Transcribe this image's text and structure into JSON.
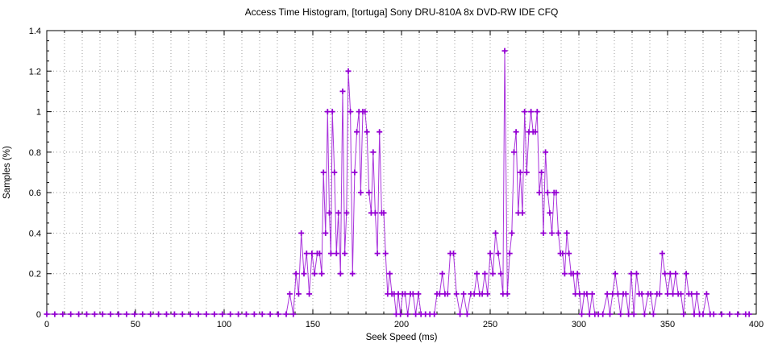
{
  "chart_data": {
    "type": "line",
    "title": "Access Time Histogram, [tortuga] Sony DRU-810A 8x DVD-RW IDE CFQ",
    "xlabel": "Seek Speed (ms)",
    "ylabel": "Samples (%)",
    "xlim": [
      0,
      400
    ],
    "ylim": [
      0,
      1.4
    ],
    "x_major_ticks": [
      0,
      50,
      100,
      150,
      200,
      250,
      300,
      350,
      400
    ],
    "x_tick_labels": [
      "0",
      "50",
      "100",
      "150",
      "200",
      "250",
      "300",
      "350",
      "400"
    ],
    "x_minor_step": 10,
    "y_major_ticks": [
      0,
      0.2,
      0.4,
      0.6,
      0.8,
      1,
      1.2,
      1.4
    ],
    "y_tick_labels": [
      "0",
      "0.2",
      "0.4",
      "0.6",
      "0.8",
      "1",
      "1.2",
      "1.4"
    ],
    "y_minor_step": 0.05,
    "grid": "dotted; vertical lines every 10 ms, horizontal lines every 0.2",
    "legend": "none",
    "marker": "plus",
    "series_color": "#9400d3",
    "grid_color": "#9e9e9e",
    "border_color": "#000000",
    "points": [
      [
        0,
        0
      ],
      [
        4.5,
        0
      ],
      [
        9,
        0
      ],
      [
        13.5,
        0
      ],
      [
        18,
        0
      ],
      [
        22.5,
        0
      ],
      [
        27,
        0
      ],
      [
        31.5,
        0
      ],
      [
        36,
        0
      ],
      [
        40.5,
        0
      ],
      [
        45,
        0
      ],
      [
        49.5,
        0
      ],
      [
        54,
        0
      ],
      [
        58.5,
        0
      ],
      [
        63,
        0
      ],
      [
        67.5,
        0
      ],
      [
        72,
        0
      ],
      [
        76.5,
        0
      ],
      [
        81,
        0
      ],
      [
        85.5,
        0
      ],
      [
        90,
        0
      ],
      [
        94.5,
        0
      ],
      [
        99,
        0
      ],
      [
        103.5,
        0
      ],
      [
        108,
        0
      ],
      [
        112.5,
        0
      ],
      [
        117,
        0
      ],
      [
        121.5,
        0
      ],
      [
        126,
        0
      ],
      [
        130.5,
        0
      ],
      [
        135,
        0
      ],
      [
        137,
        0.1
      ],
      [
        139,
        0
      ],
      [
        140.5,
        0.2
      ],
      [
        142,
        0.1
      ],
      [
        143.5,
        0.4
      ],
      [
        145,
        0.2
      ],
      [
        146.5,
        0.3
      ],
      [
        148,
        0.1
      ],
      [
        149.5,
        0.3
      ],
      [
        151,
        0.2
      ],
      [
        152.5,
        0.3
      ],
      [
        153.8,
        0.3
      ],
      [
        155,
        0.2
      ],
      [
        156,
        0.7
      ],
      [
        157.2,
        0.4
      ],
      [
        158.3,
        1
      ],
      [
        159.3,
        0.5
      ],
      [
        160.2,
        0.3
      ],
      [
        161,
        1
      ],
      [
        162.2,
        0.7
      ],
      [
        163.3,
        0.3
      ],
      [
        164.4,
        0.5
      ],
      [
        165.6,
        0.2
      ],
      [
        166.8,
        1.1
      ],
      [
        168,
        0.3
      ],
      [
        169,
        0.5
      ],
      [
        170,
        1.2
      ],
      [
        171.2,
        1
      ],
      [
        172.4,
        0.2
      ],
      [
        173.6,
        0.7
      ],
      [
        174.8,
        0.9
      ],
      [
        176,
        1
      ],
      [
        177,
        0.6
      ],
      [
        178.2,
        1
      ],
      [
        179.4,
        1
      ],
      [
        180.5,
        0.9
      ],
      [
        181.7,
        0.6
      ],
      [
        182.9,
        0.5
      ],
      [
        184,
        0.8
      ],
      [
        185.2,
        0.5
      ],
      [
        186.4,
        0.3
      ],
      [
        187.6,
        0.9
      ],
      [
        188.8,
        0.5
      ],
      [
        190,
        0.5
      ],
      [
        191,
        0.3
      ],
      [
        192.2,
        0.1
      ],
      [
        193.4,
        0.2
      ],
      [
        194.6,
        0.1
      ],
      [
        195.8,
        0.1
      ],
      [
        197,
        0
      ],
      [
        198.2,
        0.1
      ],
      [
        199.4,
        0
      ],
      [
        200.6,
        0.1
      ],
      [
        202,
        0.1
      ],
      [
        203.5,
        0
      ],
      [
        205,
        0.1
      ],
      [
        206.5,
        0.1
      ],
      [
        208,
        0
      ],
      [
        209.5,
        0.1
      ],
      [
        211,
        0
      ],
      [
        213.5,
        0
      ],
      [
        216,
        0
      ],
      [
        218.5,
        0
      ],
      [
        220,
        0.1
      ],
      [
        221.5,
        0.1
      ],
      [
        223,
        0.2
      ],
      [
        224.5,
        0.1
      ],
      [
        226,
        0.1
      ],
      [
        227.5,
        0.3
      ],
      [
        229.3,
        0.3
      ],
      [
        231,
        0.1
      ],
      [
        233,
        0
      ],
      [
        235,
        0.1
      ],
      [
        237,
        0
      ],
      [
        239,
        0.1
      ],
      [
        241,
        0.1
      ],
      [
        242.5,
        0.2
      ],
      [
        244,
        0.1
      ],
      [
        245.5,
        0.1
      ],
      [
        247,
        0.2
      ],
      [
        248.5,
        0.1
      ],
      [
        250,
        0.3
      ],
      [
        251.5,
        0.2
      ],
      [
        253,
        0.4
      ],
      [
        254.5,
        0.3
      ],
      [
        256,
        0.2
      ],
      [
        257.2,
        0.1
      ],
      [
        258.2,
        1.3
      ],
      [
        259.7,
        0.1
      ],
      [
        261,
        0.3
      ],
      [
        262.2,
        0.4
      ],
      [
        263.4,
        0.8
      ],
      [
        264.6,
        0.9
      ],
      [
        265.8,
        0.5
      ],
      [
        267,
        0.7
      ],
      [
        268.2,
        0.5
      ],
      [
        269.4,
        1
      ],
      [
        270.6,
        0.7
      ],
      [
        271.8,
        0.9
      ],
      [
        273,
        1
      ],
      [
        274.2,
        0.9
      ],
      [
        275.4,
        0.9
      ],
      [
        276.5,
        1
      ],
      [
        277.7,
        0.6
      ],
      [
        278.9,
        0.7
      ],
      [
        280,
        0.4
      ],
      [
        281.2,
        0.8
      ],
      [
        282.4,
        0.6
      ],
      [
        283.6,
        0.5
      ],
      [
        284.8,
        0.4
      ],
      [
        286,
        0.6
      ],
      [
        287.2,
        0.6
      ],
      [
        288.4,
        0.4
      ],
      [
        289.6,
        0.3
      ],
      [
        290.8,
        0.3
      ],
      [
        292,
        0.2
      ],
      [
        293.2,
        0.4
      ],
      [
        294.4,
        0.3
      ],
      [
        295.6,
        0.2
      ],
      [
        296.8,
        0.2
      ],
      [
        298,
        0.1
      ],
      [
        299.2,
        0.2
      ],
      [
        300.4,
        0.1
      ],
      [
        301.6,
        0
      ],
      [
        303,
        0.1
      ],
      [
        304.5,
        0.1
      ],
      [
        306,
        0
      ],
      [
        307.5,
        0.1
      ],
      [
        309,
        0
      ],
      [
        311,
        0
      ],
      [
        313.5,
        0
      ],
      [
        316,
        0.1
      ],
      [
        317.5,
        0
      ],
      [
        319,
        0.1
      ],
      [
        320.5,
        0.2
      ],
      [
        322,
        0.1
      ],
      [
        323.5,
        0
      ],
      [
        325,
        0.1
      ],
      [
        326.5,
        0.1
      ],
      [
        328,
        0
      ],
      [
        329.5,
        0.2
      ],
      [
        331,
        0
      ],
      [
        332.5,
        0.2
      ],
      [
        334,
        0.1
      ],
      [
        335.5,
        0.1
      ],
      [
        337,
        0
      ],
      [
        339,
        0.1
      ],
      [
        340.5,
        0.1
      ],
      [
        342,
        0
      ],
      [
        344,
        0.1
      ],
      [
        345.5,
        0.1
      ],
      [
        347,
        0.3
      ],
      [
        348.5,
        0.2
      ],
      [
        350,
        0.1
      ],
      [
        351.5,
        0.2
      ],
      [
        353,
        0.1
      ],
      [
        354.5,
        0.2
      ],
      [
        356,
        0.1
      ],
      [
        357.5,
        0.1
      ],
      [
        359,
        0
      ],
      [
        360.5,
        0.2
      ],
      [
        362,
        0.1
      ],
      [
        363.5,
        0.1
      ],
      [
        365,
        0
      ],
      [
        366.5,
        0.1
      ],
      [
        368,
        0
      ],
      [
        370,
        0
      ],
      [
        372,
        0.1
      ],
      [
        374,
        0
      ],
      [
        376,
        0
      ],
      [
        380.5,
        0
      ],
      [
        385,
        0
      ],
      [
        389.5,
        0
      ],
      [
        394,
        0
      ],
      [
        396,
        0
      ]
    ]
  }
}
